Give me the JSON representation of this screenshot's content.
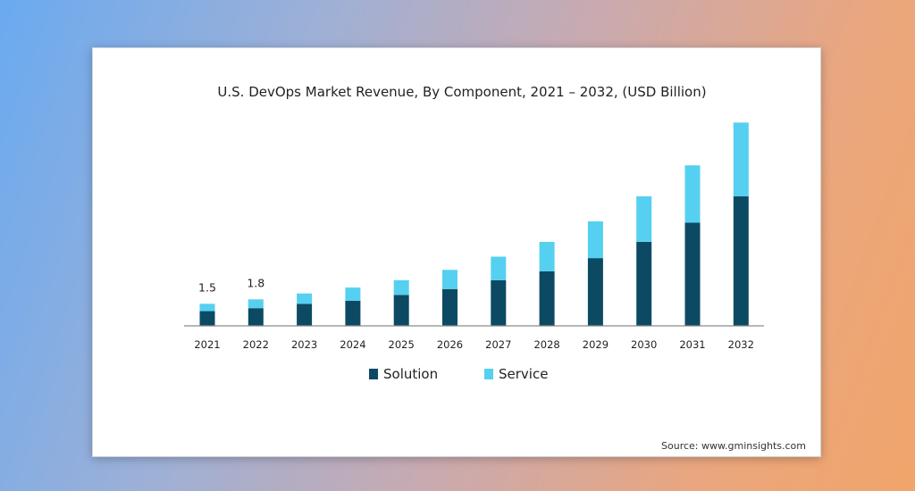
{
  "source": "Source: www.gminsights.com",
  "colors": {
    "solution": "#0c4a63",
    "service": "#56d0f0",
    "axis": "#8a8a8a"
  },
  "chart_data": {
    "type": "bar",
    "stacked": true,
    "title": "U.S. DevOps Market Revenue, By Component, 2021 – 2032, (USD Billion)",
    "xlabel": "",
    "ylabel": "",
    "categories": [
      "2021",
      "2022",
      "2023",
      "2024",
      "2025",
      "2026",
      "2027",
      "2028",
      "2029",
      "2030",
      "2031",
      "2032"
    ],
    "series": [
      {
        "name": "Solution",
        "values": [
          1.0,
          1.2,
          1.5,
          1.7,
          2.1,
          2.5,
          3.1,
          3.7,
          4.6,
          5.7,
          7.0,
          8.8
        ]
      },
      {
        "name": "Service",
        "values": [
          0.5,
          0.6,
          0.7,
          0.9,
          1.0,
          1.3,
          1.6,
          2.0,
          2.5,
          3.1,
          3.9,
          5.0
        ]
      }
    ],
    "data_labels": [
      {
        "category": "2021",
        "text": "1.5"
      },
      {
        "category": "2022",
        "text": "1.8"
      }
    ],
    "ylim": [
      0,
      14
    ],
    "legend": "bottom-center",
    "grid": false
  }
}
